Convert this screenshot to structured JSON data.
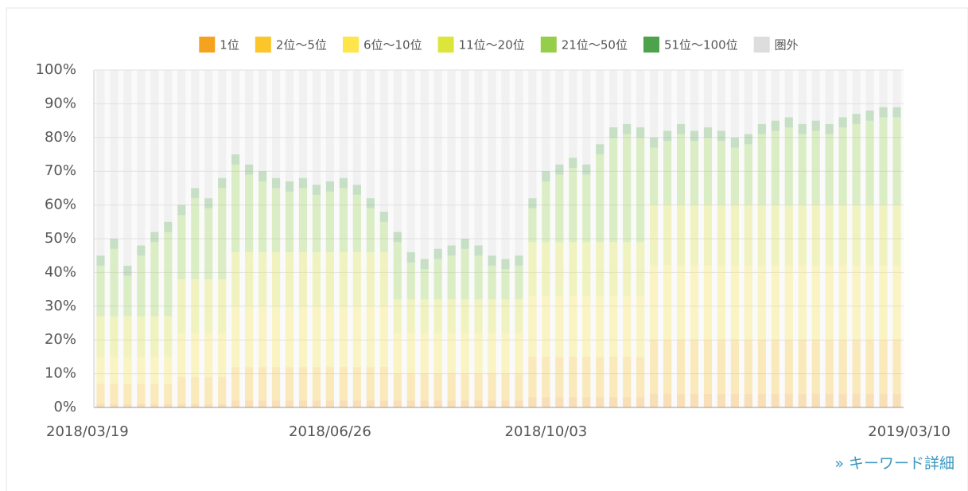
{
  "chart_data": {
    "type": "stacked_bar",
    "categories": [
      "2018/03/19",
      null,
      null,
      null,
      null,
      null,
      null,
      null,
      null,
      null,
      null,
      null,
      null,
      null,
      null,
      null,
      null,
      "2018/06/26",
      null,
      null,
      null,
      null,
      null,
      null,
      null,
      null,
      null,
      null,
      null,
      null,
      null,
      null,
      null,
      "2018/10/03",
      null,
      null,
      null,
      null,
      null,
      null,
      null,
      null,
      null,
      null,
      null,
      null,
      null,
      null,
      null,
      null,
      null,
      null,
      null,
      null,
      null,
      null,
      null,
      null,
      null,
      "2019/03/10"
    ],
    "series": [
      {
        "name": "1位",
        "color": "#f5a21f",
        "values": [
          1,
          1,
          1,
          1,
          1,
          1,
          1,
          1,
          1,
          1,
          2,
          2,
          2,
          2,
          2,
          2,
          2,
          2,
          2,
          2,
          2,
          2,
          2,
          2,
          2,
          2,
          2,
          2,
          2,
          2,
          2,
          2,
          3,
          3,
          3,
          3,
          3,
          3,
          3,
          3,
          3,
          4,
          4,
          4,
          4,
          4,
          4,
          4,
          4,
          4,
          4,
          4,
          4,
          4,
          4,
          4,
          4,
          4,
          4,
          4
        ]
      },
      {
        "name": "2位～5位",
        "color": "#fcc52a",
        "values": [
          6,
          6,
          6,
          6,
          6,
          6,
          8,
          8,
          8,
          8,
          10,
          10,
          10,
          10,
          10,
          10,
          10,
          10,
          10,
          10,
          10,
          10,
          8,
          8,
          8,
          8,
          8,
          8,
          8,
          8,
          8,
          8,
          12,
          12,
          12,
          12,
          12,
          12,
          12,
          12,
          12,
          16,
          16,
          16,
          16,
          16,
          16,
          16,
          16,
          16,
          16,
          16,
          16,
          16,
          16,
          16,
          16,
          16,
          16,
          16
        ]
      },
      {
        "name": "6位～10位",
        "color": "#fde54a",
        "values": [
          8,
          8,
          8,
          8,
          8,
          8,
          13,
          13,
          13,
          13,
          18,
          18,
          18,
          18,
          18,
          18,
          18,
          18,
          18,
          18,
          18,
          18,
          12,
          12,
          12,
          12,
          12,
          12,
          12,
          12,
          12,
          12,
          18,
          18,
          18,
          18,
          18,
          18,
          18,
          18,
          18,
          22,
          22,
          22,
          22,
          22,
          22,
          22,
          22,
          22,
          22,
          22,
          22,
          22,
          22,
          22,
          22,
          22,
          22,
          22
        ]
      },
      {
        "name": "11位～20位",
        "color": "#dce53a",
        "values": [
          12,
          12,
          12,
          12,
          12,
          12,
          16,
          16,
          16,
          16,
          16,
          16,
          16,
          16,
          16,
          16,
          16,
          16,
          16,
          16,
          16,
          16,
          10,
          10,
          10,
          10,
          10,
          10,
          10,
          10,
          10,
          10,
          16,
          16,
          16,
          16,
          16,
          16,
          16,
          16,
          16,
          18,
          18,
          18,
          18,
          18,
          18,
          18,
          18,
          18,
          18,
          18,
          18,
          18,
          18,
          18,
          18,
          18,
          18,
          18
        ]
      },
      {
        "name": "21位～50位",
        "color": "#95cf4a",
        "values": [
          15,
          20,
          12,
          18,
          22,
          25,
          19,
          24,
          21,
          27,
          26,
          23,
          21,
          19,
          18,
          19,
          17,
          18,
          19,
          17,
          13,
          9,
          17,
          11,
          9,
          12,
          13,
          15,
          13,
          10,
          9,
          10,
          10,
          18,
          20,
          22,
          20,
          26,
          31,
          32,
          31,
          17,
          19,
          21,
          19,
          20,
          19,
          17,
          18,
          21,
          22,
          23,
          21,
          22,
          21,
          23,
          24,
          25,
          26,
          26
        ]
      },
      {
        "name": "51位～100位",
        "color": "#4ea24c",
        "values": [
          3,
          3,
          3,
          3,
          3,
          3,
          3,
          3,
          3,
          3,
          3,
          3,
          3,
          3,
          3,
          3,
          3,
          3,
          3,
          3,
          3,
          3,
          3,
          3,
          3,
          3,
          3,
          3,
          3,
          3,
          3,
          3,
          3,
          3,
          3,
          3,
          3,
          3,
          3,
          3,
          3,
          3,
          3,
          3,
          3,
          3,
          3,
          3,
          3,
          3,
          3,
          3,
          3,
          3,
          3,
          3,
          3,
          3,
          3,
          3
        ]
      },
      {
        "name": "圏外",
        "color": "#dddddd",
        "values": [
          55,
          50,
          58,
          52,
          48,
          45,
          40,
          35,
          38,
          32,
          25,
          28,
          30,
          32,
          33,
          32,
          34,
          33,
          32,
          34,
          38,
          42,
          48,
          54,
          56,
          53,
          52,
          50,
          52,
          55,
          56,
          55,
          38,
          30,
          28,
          26,
          28,
          22,
          17,
          16,
          17,
          20,
          18,
          16,
          18,
          17,
          18,
          20,
          19,
          16,
          15,
          14,
          16,
          15,
          16,
          14,
          13,
          12,
          11,
          11
        ]
      }
    ],
    "ylim": [
      0,
      100
    ],
    "yticks": [
      {
        "value": 0,
        "label": "0%"
      },
      {
        "value": 10,
        "label": "10%"
      },
      {
        "value": 20,
        "label": "20%"
      },
      {
        "value": 30,
        "label": "30%"
      },
      {
        "value": 40,
        "label": "40%"
      },
      {
        "value": 50,
        "label": "50%"
      },
      {
        "value": 60,
        "label": "60%"
      },
      {
        "value": 70,
        "label": "70%"
      },
      {
        "value": 80,
        "label": "80%"
      },
      {
        "value": 90,
        "label": "90%"
      },
      {
        "value": 100,
        "label": "100%"
      }
    ],
    "grid": true,
    "legend": "top"
  },
  "link_text": "» キーワード詳細"
}
